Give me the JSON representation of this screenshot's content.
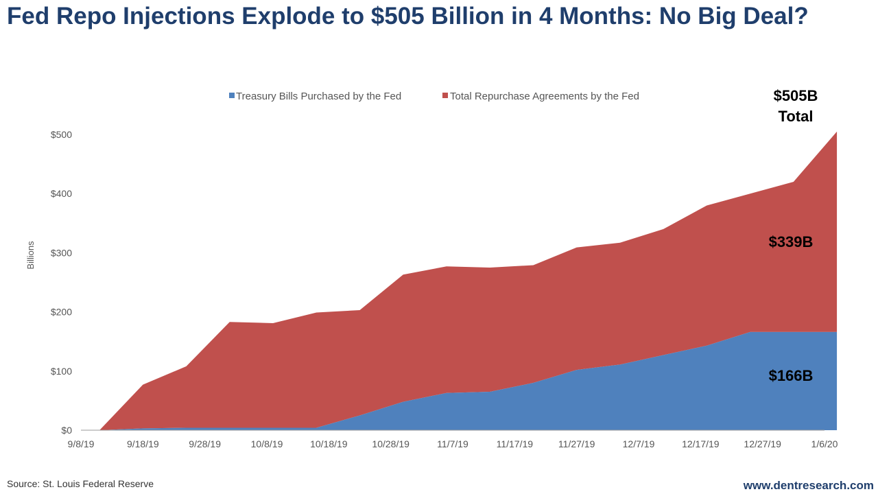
{
  "title": "Fed Repo Injections Explode to $505 Billion in 4 Months: No Big Deal?",
  "source": "Source: St. Louis Federal Reserve",
  "website": "www.dentresearch.com",
  "colors": {
    "title": "#1F3E6C",
    "tbills": "#4F81BD",
    "repo": "#C0504D"
  },
  "chart_data": {
    "type": "area",
    "stacked": true,
    "ylabel": "Billions",
    "ylim": [
      0,
      500
    ],
    "yticks": [
      "$0",
      "$100",
      "$200",
      "$300",
      "$400",
      "$500"
    ],
    "xtick_labels": [
      "9/8/19",
      "9/18/19",
      "9/28/19",
      "10/8/19",
      "10/18/19",
      "10/28/19",
      "11/7/19",
      "11/17/19",
      "11/27/19",
      "12/7/19",
      "12/17/19",
      "12/27/19",
      "1/6/20"
    ],
    "x": [
      "9/11/19",
      "9/18/19",
      "9/25/19",
      "10/2/19",
      "10/9/19",
      "10/16/19",
      "10/23/19",
      "10/30/19",
      "11/6/19",
      "11/13/19",
      "11/20/19",
      "11/27/19",
      "12/4/19",
      "12/11/19",
      "12/18/19",
      "12/25/19",
      "1/1/20",
      "1/8/20"
    ],
    "series": [
      {
        "name": "Treasury Bills Purchased by the Fed",
        "values": [
          0,
          3,
          4,
          4,
          4,
          4,
          25,
          48,
          63,
          65,
          80,
          102,
          111,
          127,
          143,
          166,
          166,
          166
        ]
      },
      {
        "name": "Total Repurchase Agreements by the Fed",
        "values": [
          0,
          74,
          104,
          179,
          177,
          195,
          178,
          215,
          214,
          210,
          199,
          207,
          206,
          213,
          237,
          234,
          254,
          339
        ]
      }
    ],
    "legend_position": "top",
    "annotations": [
      {
        "text": "$505B",
        "text2": "Total"
      },
      {
        "text": "$339B"
      },
      {
        "text": "$166B"
      }
    ]
  }
}
